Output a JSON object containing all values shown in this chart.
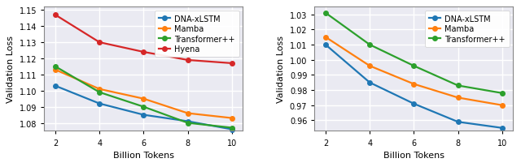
{
  "x": [
    2,
    4,
    6,
    8,
    10
  ],
  "plot1": {
    "xlabel": "Billion Tokens",
    "ylabel": "Validation Loss",
    "ylim": [
      1.075,
      1.152
    ],
    "yticks": [
      1.08,
      1.09,
      1.1,
      1.11,
      1.12,
      1.13,
      1.14,
      1.15
    ],
    "series": {
      "DNA-xLSTM": {
        "values": [
          1.103,
          1.092,
          1.085,
          1.081,
          1.076
        ],
        "color": "#1f77b4"
      },
      "Mamba": {
        "values": [
          1.113,
          1.101,
          1.095,
          1.086,
          1.083
        ],
        "color": "#ff7f0e"
      },
      "Transformer++": {
        "values": [
          1.115,
          1.099,
          1.09,
          1.08,
          1.077
        ],
        "color": "#2ca02c"
      },
      "Hyena": {
        "values": [
          1.147,
          1.13,
          1.124,
          1.119,
          1.117
        ],
        "color": "#d62728"
      }
    },
    "legend_order": [
      "DNA-xLSTM",
      "Mamba",
      "Transformer++",
      "Hyena"
    ]
  },
  "plot2": {
    "xlabel": "Billion Tokens",
    "ylabel": "Validation Loss",
    "ylim": [
      0.953,
      1.035
    ],
    "yticks": [
      0.96,
      0.97,
      0.98,
      0.99,
      1.0,
      1.01,
      1.02,
      1.03
    ],
    "series": {
      "DNA-xLSTM": {
        "values": [
          1.01,
          0.985,
          0.971,
          0.959,
          0.955
        ],
        "color": "#1f77b4"
      },
      "Mamba": {
        "values": [
          1.015,
          0.996,
          0.984,
          0.975,
          0.97
        ],
        "color": "#ff7f0e"
      },
      "Transformer++": {
        "values": [
          1.031,
          1.01,
          0.996,
          0.983,
          0.978
        ],
        "color": "#2ca02c"
      }
    },
    "legend_order": [
      "DNA-xLSTM",
      "Mamba",
      "Transformer++"
    ]
  },
  "marker": "o",
  "markersize": 4,
  "linewidth": 1.6,
  "tick_fontsize": 7,
  "label_fontsize": 8,
  "legend_fontsize": 7,
  "fig_bg": "#ffffff",
  "ax_bg": "#eaeaf2",
  "grid_color": "#ffffff",
  "grid_linewidth": 1.0
}
